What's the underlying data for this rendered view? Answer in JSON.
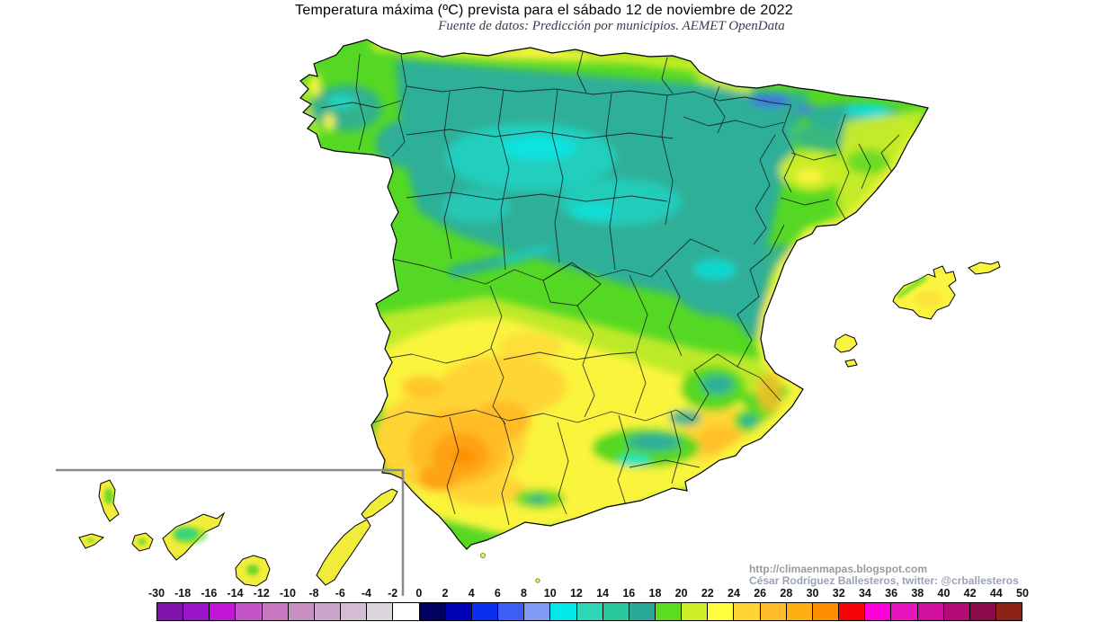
{
  "title": "Temperatura máxima (ºC) prevista para el sábado 12 de noviembre de 2022",
  "subtitle": "Fuente de datos: Predicción por municipios. AEMET OpenData",
  "credits": {
    "url": "http://climaenmapas.blogspot.com",
    "author": "César Rodríguez Ballesteros, twitter: @crballesteros"
  },
  "scale": {
    "unit": "ºC",
    "labels": [
      "-30",
      "-18",
      "-16",
      "-14",
      "-12",
      "-10",
      "-8",
      "-6",
      "-4",
      "-2",
      "0",
      "2",
      "4",
      "6",
      "8",
      "10",
      "12",
      "14",
      "16",
      "18",
      "20",
      "22",
      "24",
      "26",
      "28",
      "30",
      "32",
      "34",
      "36",
      "38",
      "40",
      "42",
      "44",
      "50"
    ],
    "colors": [
      "#8012AE",
      "#9B13C8",
      "#C316D6",
      "#C455C8",
      "#C677C0",
      "#C78FC2",
      "#CCA6CA",
      "#D4BDD2",
      "#DDD5DD",
      "#FFFFFF",
      "#000060",
      "#0000B4",
      "#0A2FF0",
      "#3E5EF8",
      "#7E9AF5",
      "#00E8E8",
      "#2ED6B8",
      "#2BC89E",
      "#2AAA96",
      "#5CDC1E",
      "#CFEF28",
      "#FFFF40",
      "#FFD435",
      "#FFBC28",
      "#FFAE14",
      "#FD8D00",
      "#F50505",
      "#FB00D8",
      "#E713BE",
      "#D00F9E",
      "#B40C76",
      "#8C0A4A",
      "#8E2218"
    ]
  },
  "map_palette": {
    "teal": "#2FAF97",
    "cyan": "#21D3C3",
    "brightCyan": "#00E8E8",
    "green": "#55D824",
    "yellow_green": "#C9EC28",
    "yellow": "#FAF43E",
    "golden": "#FFD435",
    "amber": "#FFBC28",
    "orange": "#FFA214",
    "deep_orange": "#FD8D00",
    "blue": "#4565F2",
    "island_yellow": "#F2EC3A",
    "coast_stroke": "#000000",
    "inset_border": "#8a8a8a"
  }
}
